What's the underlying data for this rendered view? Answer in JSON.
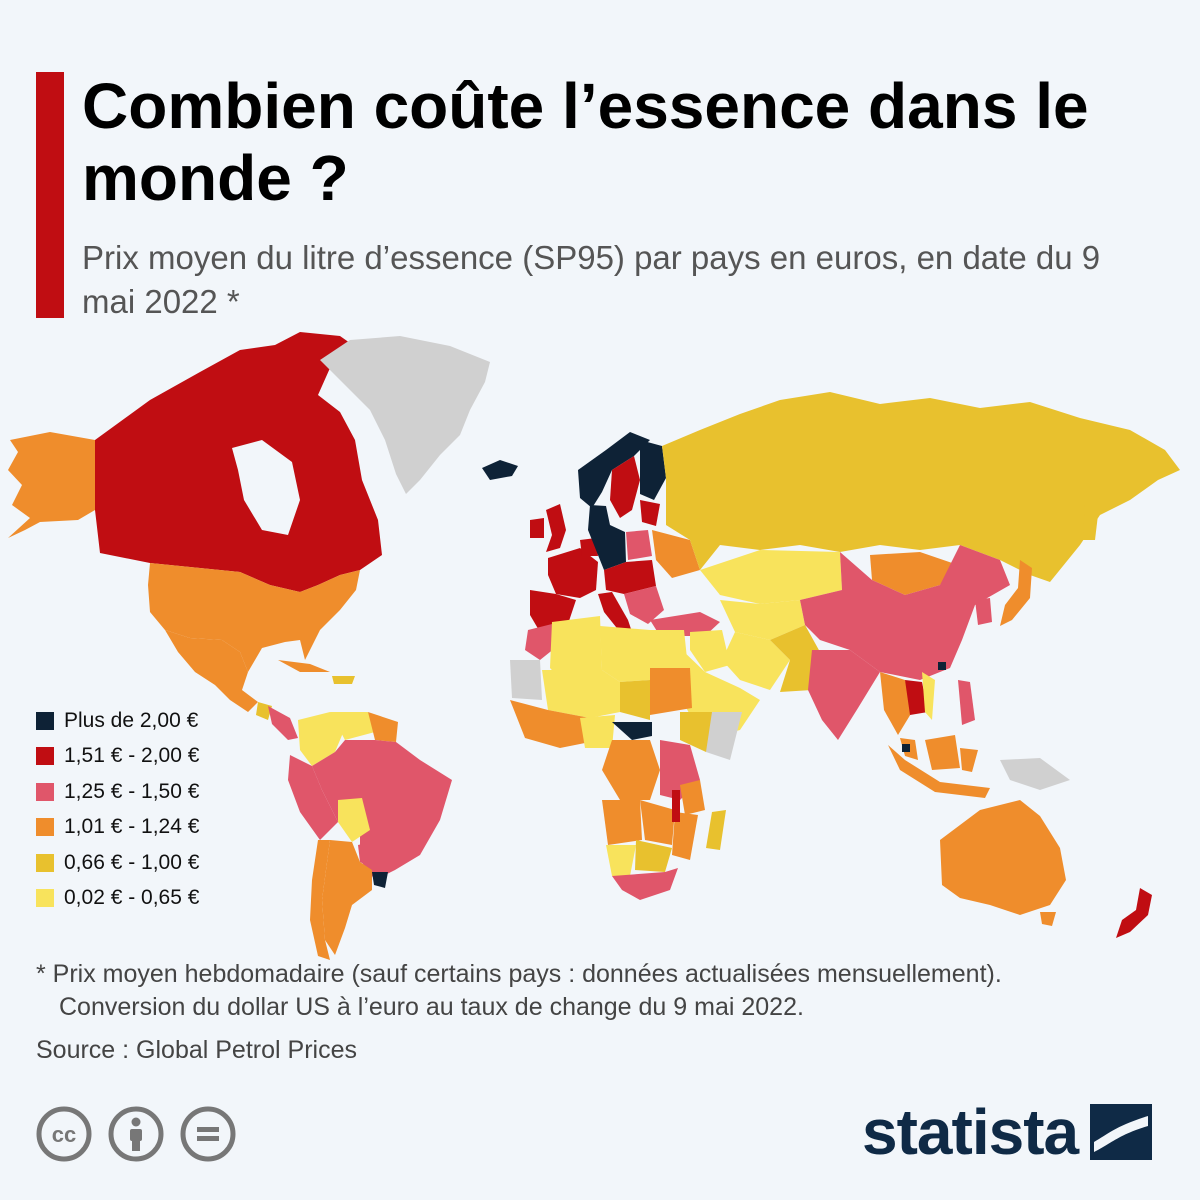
{
  "header": {
    "title": "Combien coûte l’essence dans le monde ?",
    "subtitle": "Prix moyen du litre d’essence (SP95) par pays en euros, en date du 9 mai 2022 *"
  },
  "legend": {
    "items": [
      {
        "label": "Plus de 2,00 €",
        "color": "#0e2236"
      },
      {
        "label": "1,51 € - 2,00 €",
        "color": "#c00d12"
      },
      {
        "label": "1,25 € - 1,50 €",
        "color": "#e0566a"
      },
      {
        "label": "1,01 € - 1,24 €",
        "color": "#ef8d2c"
      },
      {
        "label": "0,66 € - 1,00 €",
        "color": "#e8c12e"
      },
      {
        "label": "0,02 € - 0,65 €",
        "color": "#f8e35c"
      }
    ],
    "no_data_color": "#d0d0d0"
  },
  "footnote": {
    "line1": "* Prix moyen hebdomadaire (sauf certains pays : données actualisées mensuellement).",
    "line2": "Conversion du dollar US à l’euro au taux de change du 9 mai 2022."
  },
  "source": "Source : Global Petrol Prices",
  "license_icons": [
    "cc-icon",
    "attribution-icon",
    "no-derivatives-icon"
  ],
  "brand": {
    "name": "statista",
    "color": "#0f2a46"
  }
}
